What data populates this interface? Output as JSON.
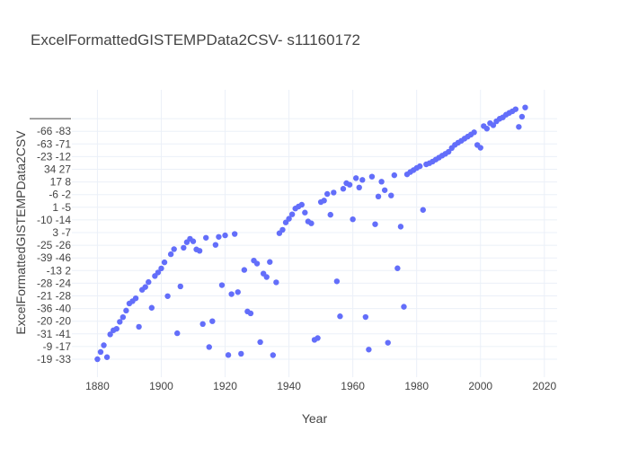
{
  "chart_data": {
    "type": "scatter",
    "title": "ExcelFormattedGISTEMPData2CSV- s11160172",
    "xlabel": "Year",
    "ylabel": "ExcelFormattedGISTEMPData2CSV",
    "xlim": [
      1872,
      2024
    ],
    "x_ticks": [
      1880,
      1900,
      1920,
      1940,
      1960,
      1980,
      2000,
      2020
    ],
    "y_categories": [
      "-19 -33",
      "-9 -17",
      "-31 -41",
      "-20 -20",
      "-36 -40",
      "-21 -28",
      "-28 -24",
      "-13 2",
      "-39 -46",
      "-25 -26",
      "3 -7",
      "-10 -14",
      "1 -5",
      "-6 -2",
      "17 8",
      "34 27",
      "-23 -12",
      "-63 -71",
      "-66 -83",
      ""
    ],
    "grid": true,
    "marker_color": "#636efa",
    "points": [
      {
        "x": 1880,
        "y": 0.0
      },
      {
        "x": 1881,
        "y": 0.57
      },
      {
        "x": 1882,
        "y": 1.1
      },
      {
        "x": 1883,
        "y": 0.16
      },
      {
        "x": 1884,
        "y": 1.96
      },
      {
        "x": 1885,
        "y": 2.28
      },
      {
        "x": 1886,
        "y": 2.4
      },
      {
        "x": 1887,
        "y": 2.95
      },
      {
        "x": 1888,
        "y": 3.32
      },
      {
        "x": 1889,
        "y": 3.84
      },
      {
        "x": 1890,
        "y": 4.4
      },
      {
        "x": 1891,
        "y": 4.58
      },
      {
        "x": 1892,
        "y": 4.81
      },
      {
        "x": 1893,
        "y": 2.56
      },
      {
        "x": 1894,
        "y": 5.48
      },
      {
        "x": 1895,
        "y": 5.7
      },
      {
        "x": 1896,
        "y": 6.09
      },
      {
        "x": 1897,
        "y": 4.06
      },
      {
        "x": 1898,
        "y": 6.57
      },
      {
        "x": 1899,
        "y": 6.85
      },
      {
        "x": 1900,
        "y": 7.17
      },
      {
        "x": 1901,
        "y": 7.65
      },
      {
        "x": 1902,
        "y": 4.98
      },
      {
        "x": 1903,
        "y": 8.29
      },
      {
        "x": 1904,
        "y": 8.69
      },
      {
        "x": 1905,
        "y": 2.05
      },
      {
        "x": 1906,
        "y": 5.75
      },
      {
        "x": 1907,
        "y": 8.8
      },
      {
        "x": 1908,
        "y": 9.24
      },
      {
        "x": 1909,
        "y": 9.51
      },
      {
        "x": 1910,
        "y": 9.31
      },
      {
        "x": 1911,
        "y": 8.67
      },
      {
        "x": 1912,
        "y": 8.56
      },
      {
        "x": 1913,
        "y": 2.78
      },
      {
        "x": 1914,
        "y": 9.59
      },
      {
        "x": 1915,
        "y": 0.96
      },
      {
        "x": 1916,
        "y": 3.0
      },
      {
        "x": 1917,
        "y": 9.03
      },
      {
        "x": 1918,
        "y": 9.66
      },
      {
        "x": 1919,
        "y": 5.85
      },
      {
        "x": 1920,
        "y": 9.78
      },
      {
        "x": 1921,
        "y": 0.33
      },
      {
        "x": 1922,
        "y": 5.14
      },
      {
        "x": 1923,
        "y": 9.89
      },
      {
        "x": 1924,
        "y": 5.3
      },
      {
        "x": 1925,
        "y": 0.43
      },
      {
        "x": 1926,
        "y": 7.05
      },
      {
        "x": 1927,
        "y": 3.77
      },
      {
        "x": 1928,
        "y": 3.62
      },
      {
        "x": 1929,
        "y": 7.79
      },
      {
        "x": 1930,
        "y": 7.55
      },
      {
        "x": 1931,
        "y": 1.35
      },
      {
        "x": 1932,
        "y": 6.76
      },
      {
        "x": 1933,
        "y": 6.49
      },
      {
        "x": 1934,
        "y": 7.68
      },
      {
        "x": 1935,
        "y": 0.32
      },
      {
        "x": 1936,
        "y": 6.07
      },
      {
        "x": 1937,
        "y": 9.95
      },
      {
        "x": 1938,
        "y": 10.22
      },
      {
        "x": 1939,
        "y": 10.8
      },
      {
        "x": 1940,
        "y": 11.09
      },
      {
        "x": 1941,
        "y": 11.44
      },
      {
        "x": 1942,
        "y": 11.9
      },
      {
        "x": 1943,
        "y": 12.06
      },
      {
        "x": 1944,
        "y": 12.2
      },
      {
        "x": 1945,
        "y": 11.58
      },
      {
        "x": 1946,
        "y": 10.88
      },
      {
        "x": 1947,
        "y": 10.73
      },
      {
        "x": 1948,
        "y": 1.53
      },
      {
        "x": 1949,
        "y": 1.67
      },
      {
        "x": 1950,
        "y": 12.41
      },
      {
        "x": 1951,
        "y": 12.53
      },
      {
        "x": 1952,
        "y": 13.05
      },
      {
        "x": 1953,
        "y": 11.41
      },
      {
        "x": 1954,
        "y": 13.16
      },
      {
        "x": 1955,
        "y": 6.15
      },
      {
        "x": 1956,
        "y": 3.39
      },
      {
        "x": 1957,
        "y": 13.46
      },
      {
        "x": 1958,
        "y": 13.9
      },
      {
        "x": 1959,
        "y": 13.78
      },
      {
        "x": 1960,
        "y": 11.05
      },
      {
        "x": 1961,
        "y": 14.3
      },
      {
        "x": 1962,
        "y": 13.56
      },
      {
        "x": 1963,
        "y": 14.16
      },
      {
        "x": 1964,
        "y": 3.33
      },
      {
        "x": 1965,
        "y": 0.76
      },
      {
        "x": 1966,
        "y": 14.42
      },
      {
        "x": 1967,
        "y": 10.66
      },
      {
        "x": 1968,
        "y": 12.85
      },
      {
        "x": 1969,
        "y": 14.02
      },
      {
        "x": 1970,
        "y": 13.35
      },
      {
        "x": 1971,
        "y": 1.3
      },
      {
        "x": 1972,
        "y": 12.93
      },
      {
        "x": 1973,
        "y": 14.53
      },
      {
        "x": 1974,
        "y": 7.18
      },
      {
        "x": 1975,
        "y": 10.47
      },
      {
        "x": 1976,
        "y": 4.14
      },
      {
        "x": 1977,
        "y": 14.6
      },
      {
        "x": 1978,
        "y": 14.78
      },
      {
        "x": 1979,
        "y": 14.93
      },
      {
        "x": 1980,
        "y": 15.1
      },
      {
        "x": 1981,
        "y": 15.24
      },
      {
        "x": 1982,
        "y": 11.79
      },
      {
        "x": 1983,
        "y": 15.39
      },
      {
        "x": 1984,
        "y": 15.48
      },
      {
        "x": 1985,
        "y": 15.61
      },
      {
        "x": 1986,
        "y": 15.77
      },
      {
        "x": 1987,
        "y": 15.92
      },
      {
        "x": 1988,
        "y": 16.08
      },
      {
        "x": 1989,
        "y": 16.22
      },
      {
        "x": 1990,
        "y": 16.38
      },
      {
        "x": 1991,
        "y": 16.68
      },
      {
        "x": 1992,
        "y": 16.93
      },
      {
        "x": 1993,
        "y": 17.1
      },
      {
        "x": 1994,
        "y": 17.25
      },
      {
        "x": 1995,
        "y": 17.42
      },
      {
        "x": 1996,
        "y": 17.58
      },
      {
        "x": 1997,
        "y": 17.74
      },
      {
        "x": 1998,
        "y": 17.92
      },
      {
        "x": 1999,
        "y": 16.92
      },
      {
        "x": 2000,
        "y": 16.7
      },
      {
        "x": 2001,
        "y": 18.41
      },
      {
        "x": 2002,
        "y": 18.21
      },
      {
        "x": 2003,
        "y": 18.64
      },
      {
        "x": 2004,
        "y": 18.48
      },
      {
        "x": 2005,
        "y": 18.79
      },
      {
        "x": 2006,
        "y": 18.99
      },
      {
        "x": 2007,
        "y": 19.1
      },
      {
        "x": 2008,
        "y": 19.31
      },
      {
        "x": 2009,
        "y": 19.45
      },
      {
        "x": 2010,
        "y": 19.58
      },
      {
        "x": 2011,
        "y": 19.74
      },
      {
        "x": 2012,
        "y": 18.35
      },
      {
        "x": 2013,
        "y": 19.15
      },
      {
        "x": 2014,
        "y": 19.88
      }
    ]
  }
}
